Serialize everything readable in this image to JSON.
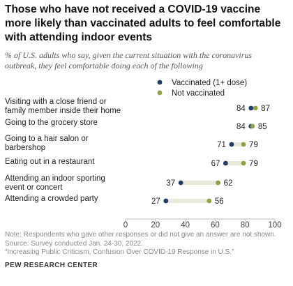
{
  "title_lines": [
    "Those who have not received a COVID-19 vaccine",
    "more likely than vaccinated adults to feel comfortable",
    "with attending indoor events"
  ],
  "subtitle_lines": [
    "% of U.S. adults who say, given the current situation with the coronavirus",
    "outbreak, they feel comfortable doing each of the following"
  ],
  "notes": [
    "Note: Respondents who gave other responses or did not give an answer are not shown.",
    "Source: Survey conducted Jan. 24-30, 2022.",
    "“Increasing Public Criticism, Confusion Over COVID-19 Response in U.S.”"
  ],
  "brand": "PEW RESEARCH CENTER",
  "colors": {
    "vaccinated": "#213b63",
    "not_vaccinated": "#8fa046",
    "bar": "#e9e9da",
    "axis": "#bbbbbb"
  },
  "chart_data": {
    "type": "dot-range",
    "title": "Those who have not received a COVID-19 vaccine more likely than vaccinated adults to feel comfortable with attending indoor events",
    "categories": [
      [
        "Visiting with a close friend or",
        "family member inside their home"
      ],
      [
        "Going to the grocery store"
      ],
      [
        "Going to a hair salon or",
        "barbershop"
      ],
      [
        "Eating out in a restaurant"
      ],
      [
        "Attending an indoor sporting",
        "event or concert"
      ],
      [
        "Attending a crowded party"
      ]
    ],
    "series": [
      {
        "name": "Vaccinated (1+ dose)",
        "values": [
          84,
          84,
          71,
          67,
          37,
          27
        ]
      },
      {
        "name": "Not vaccinated",
        "values": [
          87,
          85,
          79,
          79,
          62,
          56
        ]
      }
    ],
    "xlim": [
      0,
      100
    ],
    "xticks": [
      0,
      20,
      40,
      60,
      80,
      100
    ],
    "legend_position": "top-right"
  }
}
